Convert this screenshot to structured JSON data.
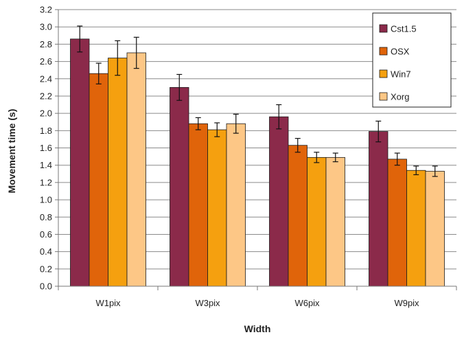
{
  "chart_data": {
    "type": "bar",
    "title": "",
    "xlabel": "Width",
    "ylabel": "Movement time (s)",
    "ylim": [
      0,
      3.2
    ],
    "ytick_step": 0.2,
    "grid": true,
    "legend_position": "top-right",
    "categories": [
      "W1pix",
      "W3pix",
      "W6pix",
      "W9pix"
    ],
    "series": [
      {
        "name": "Cst1.5",
        "color": "#8B2A4A",
        "values": [
          2.86,
          2.3,
          1.96,
          1.79
        ],
        "errors": [
          0.15,
          0.15,
          0.14,
          0.12
        ]
      },
      {
        "name": "OSX",
        "color": "#E0640A",
        "values": [
          2.46,
          1.88,
          1.63,
          1.47
        ],
        "errors": [
          0.12,
          0.07,
          0.08,
          0.07
        ]
      },
      {
        "name": "Win7",
        "color": "#F5A00F",
        "values": [
          2.64,
          1.81,
          1.49,
          1.34
        ],
        "errors": [
          0.2,
          0.08,
          0.06,
          0.05
        ]
      },
      {
        "name": "Xorg",
        "color": "#FDC786",
        "values": [
          2.7,
          1.88,
          1.49,
          1.33
        ],
        "errors": [
          0.18,
          0.11,
          0.05,
          0.06
        ]
      }
    ]
  }
}
